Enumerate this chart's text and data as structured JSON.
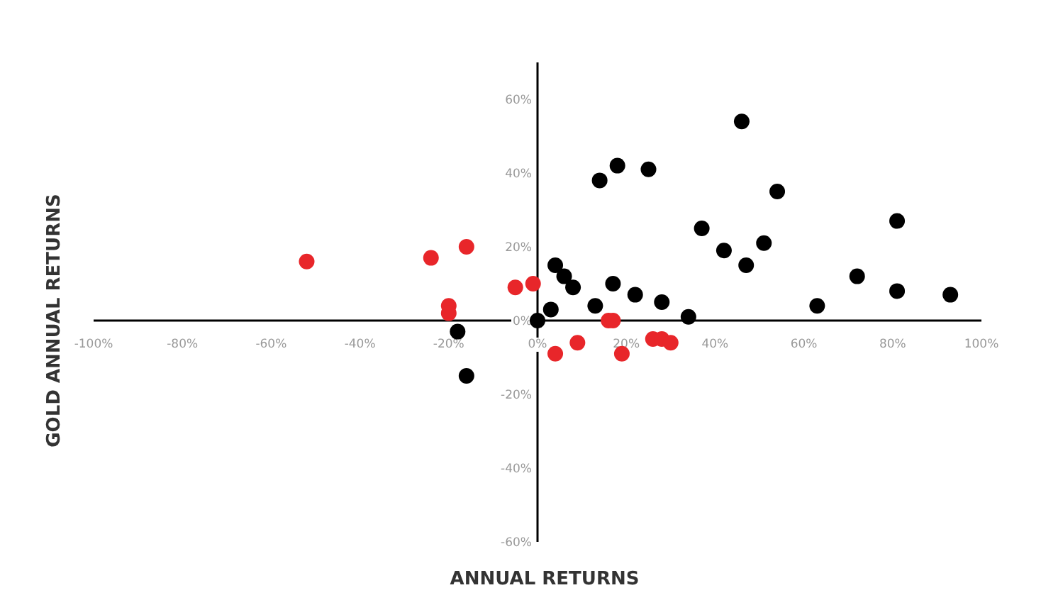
{
  "chart_data": {
    "type": "scatter",
    "xlabel": "ANNUAL RETURNS",
    "ylabel": "GOLD ANNUAL RETURNS",
    "marker": "circle",
    "grid": false,
    "xlim": [
      -100,
      100
    ],
    "ylim": [
      -60,
      70
    ],
    "xticks": [
      {
        "value": -100,
        "label": "-100%"
      },
      {
        "value": -80,
        "label": "-80%"
      },
      {
        "value": -60,
        "label": "-60%"
      },
      {
        "value": -40,
        "label": "-40%"
      },
      {
        "value": -20,
        "label": "-20%"
      },
      {
        "value": 0,
        "label": "0%"
      },
      {
        "value": 20,
        "label": "20%"
      },
      {
        "value": 40,
        "label": "40%"
      },
      {
        "value": 60,
        "label": "60%"
      },
      {
        "value": 80,
        "label": "80%"
      },
      {
        "value": 100,
        "label": "100%"
      }
    ],
    "yticks": [
      {
        "value": -60,
        "label": "-60%"
      },
      {
        "value": -40,
        "label": "-40%"
      },
      {
        "value": -20,
        "label": "-20%"
      },
      {
        "value": 0,
        "label": "0%"
      },
      {
        "value": 20,
        "label": "20%"
      },
      {
        "value": 40,
        "label": "40%"
      },
      {
        "value": 60,
        "label": "60%"
      }
    ],
    "series": [
      {
        "color": "#000000",
        "x": [
          46,
          18,
          25,
          14,
          54,
          81,
          37,
          42,
          51,
          47,
          4,
          6,
          8,
          17,
          22,
          28,
          13,
          3,
          34,
          63,
          72,
          81,
          93,
          0,
          -18,
          -16
        ],
        "values": [
          54,
          42,
          41,
          38,
          35,
          27,
          25,
          19,
          21,
          15,
          15,
          12,
          9,
          10,
          7,
          5,
          4,
          3,
          1,
          4,
          12,
          8,
          7,
          0,
          -3,
          -15
        ]
      },
      {
        "color": "#e8262a",
        "x": [
          -52,
          -24,
          -16,
          -20,
          -20,
          -5,
          -1,
          4,
          9,
          16,
          17,
          19,
          26,
          28,
          30
        ],
        "values": [
          16,
          17,
          20,
          4,
          2,
          9,
          10,
          -9,
          -6,
          0,
          0,
          -9,
          -5,
          -5,
          -6
        ]
      }
    ]
  }
}
